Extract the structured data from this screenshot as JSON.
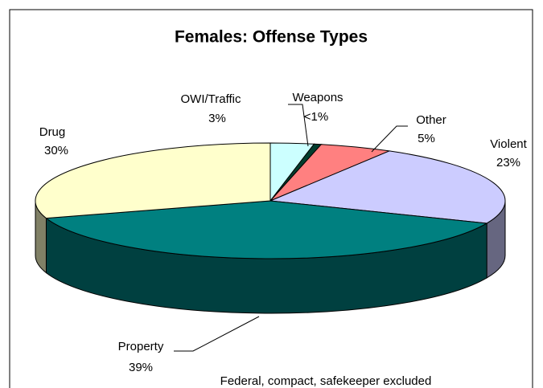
{
  "chart_data": {
    "type": "pie",
    "title": "Females: Offense Types",
    "categories": [
      "OWI/Traffic",
      "Weapons",
      "Other",
      "Violent",
      "Property",
      "Drug"
    ],
    "values": [
      3,
      0.5,
      5,
      23,
      39,
      30
    ],
    "value_labels": [
      "3%",
      "<1%",
      "5%",
      "23%",
      "39%",
      "30%"
    ],
    "colors": [
      "#ccffff",
      "#003d2e",
      "#ff8080",
      "#ccccff",
      "#008080",
      "#ffffcc"
    ],
    "note": "Federal, compact, safekeeper excluded"
  }
}
